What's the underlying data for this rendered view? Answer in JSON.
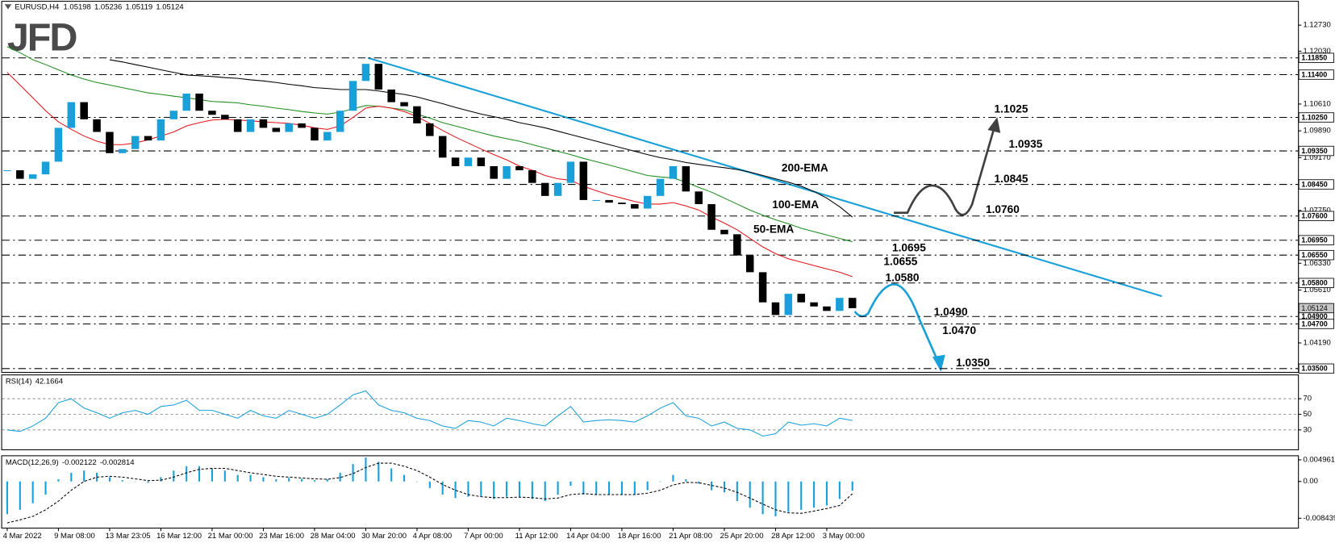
{
  "chart_data": [
    {
      "type": "candlestick",
      "logo": "JFD",
      "symbol": "EURUSD,H4",
      "ohlc": [
        1.05198,
        1.05236,
        1.05119,
        1.05124
      ],
      "categories": [
        "4 Mar 2022",
        null,
        null,
        null,
        "9 Mar 08:00",
        null,
        null,
        null,
        "13 Mar 23:05",
        null,
        null,
        null,
        "16 Mar 12:00",
        null,
        null,
        null,
        "21 Mar 00:00",
        null,
        null,
        null,
        "23 Mar 16:00",
        null,
        null,
        null,
        "28 Mar 04:00",
        null,
        null,
        null,
        "30 Mar 20:00",
        null,
        null,
        null,
        "4 Apr 08:00",
        null,
        null,
        null,
        "7 Apr 00:00",
        null,
        null,
        null,
        "11 Apr 12:00",
        null,
        null,
        null,
        "14 Apr 04:00",
        null,
        null,
        null,
        "18 Apr 16:00",
        null,
        null,
        null,
        "21 Apr 08:00",
        null,
        null,
        null,
        "25 Apr 20:00",
        null,
        null,
        null,
        "28 Apr 12:00",
        null,
        null,
        null,
        "3 May 00:00",
        null,
        null
      ],
      "values": [
        1.0883,
        1.086,
        1.0872,
        1.0906,
        1.0997,
        1.1066,
        1.102,
        1.0986,
        1.0929,
        1.094,
        1.0975,
        1.0963,
        1.102,
        1.1043,
        1.1089,
        1.1043,
        1.1032,
        1.102,
        1.0986,
        1.102,
        1.0997,
        1.0986,
        1.1009,
        1.0997,
        1.0963,
        1.0986,
        1.1043,
        1.1123,
        1.1169,
        1.11,
        1.1066,
        1.1055,
        1.1009,
        1.0975,
        1.0917,
        1.0894,
        1.0917,
        1.0894,
        1.086,
        1.0894,
        1.0883,
        1.0849,
        1.0814,
        1.0849,
        1.0906,
        1.0803,
        1.0803,
        1.0796,
        1.0792,
        1.078,
        1.0814,
        1.086,
        1.0894,
        1.0826,
        1.0792,
        1.0723,
        1.0711,
        1.0654,
        1.0609,
        1.0528,
        1.0494,
        1.0551,
        1.0528,
        1.0517,
        1.0505,
        1.054,
        1.05124
      ],
      "up_color": "#1aa0d8",
      "down_color": "#000000",
      "ema": [
        {
          "name": "200-EMA",
          "color": "#000000",
          "values": [
            null,
            null,
            null,
            null,
            null,
            null,
            null,
            null,
            1.118,
            1.1174,
            1.1167,
            1.116,
            1.1153,
            1.1146,
            1.1139,
            1.1137,
            1.1135,
            1.1132,
            1.113,
            1.1126,
            1.1123,
            1.1119,
            1.1114,
            1.111,
            1.1105,
            1.1103,
            1.11,
            1.11,
            1.11,
            1.1096,
            1.1091,
            1.1087,
            1.108,
            1.1071,
            1.1062,
            1.1052,
            1.1043,
            1.1034,
            1.1027,
            1.102,
            1.1011,
            1.1004,
            1.0997,
            1.0988,
            1.0979,
            1.097,
            1.0961,
            1.0952,
            1.0943,
            1.0934,
            1.0925,
            1.0917,
            1.0911,
            1.0904,
            1.0899,
            1.0894,
            1.089,
            1.0885,
            1.0878,
            1.0869,
            1.086,
            1.0851,
            1.084,
            1.0826,
            1.0808,
            1.0785,
            1.0757
          ]
        },
        {
          "name": "100-EMA",
          "color": "#1f8c1f",
          "values": [
            1.1215,
            1.1199,
            1.118,
            1.1167,
            1.1153,
            1.1139,
            1.1128,
            1.1119,
            1.1112,
            1.1105,
            1.1098,
            1.1091,
            1.1087,
            1.1082,
            1.1078,
            1.1073,
            1.1068,
            1.1066,
            1.1064,
            1.1059,
            1.1055,
            1.105,
            1.1046,
            1.1041,
            1.1037,
            1.1034,
            1.1039,
            1.1048,
            1.1057,
            1.1055,
            1.105,
            1.1046,
            1.1034,
            1.1023,
            1.1011,
            1.1002,
            1.0993,
            1.0984,
            1.0975,
            1.0968,
            1.0961,
            1.0952,
            1.0943,
            1.0934,
            1.0925,
            1.0915,
            1.0906,
            1.0897,
            1.0888,
            1.0878,
            1.0869,
            1.0865,
            1.0862,
            1.0851,
            1.0837,
            1.0824,
            1.0808,
            1.0792,
            1.0776,
            1.0762,
            1.075,
            1.0739,
            1.0727,
            1.0718,
            1.0709,
            1.07,
            1.0691
          ]
        },
        {
          "name": "50-EMA",
          "color": "#e3161b",
          "values": [
            1.1146,
            1.1112,
            1.1078,
            1.1043,
            1.1013,
            1.0993,
            1.0975,
            1.0961,
            1.0952,
            1.0952,
            1.0956,
            1.0965,
            1.0975,
            1.0986,
            1.1002,
            1.1011,
            1.1018,
            1.102,
            1.1018,
            1.1016,
            1.1013,
            1.1011,
            1.1009,
            1.1004,
            1.0997,
            1.0993,
            1.1002,
            1.1025,
            1.105,
            1.1055,
            1.105,
            1.1041,
            1.1027,
            1.1009,
            1.099,
            1.0972,
            1.0956,
            1.094,
            1.0925,
            1.0911,
            1.0894,
            1.0883,
            1.0869,
            1.086,
            1.0856,
            1.084,
            1.0828,
            1.0817,
            1.0808,
            1.0799,
            1.0792,
            1.0792,
            1.0796,
            1.0787,
            1.0776,
            1.0757,
            1.0741,
            1.0723,
            1.07,
            1.0677,
            1.0659,
            1.0645,
            1.0636,
            1.0627,
            1.0618,
            1.0609,
            1.0597
          ]
        }
      ],
      "ylim": [
        1.0341,
        1.1336
      ],
      "yticks": [
        {
          "value": 1.1273,
          "label": "1.12730"
        },
        {
          "value": 1.1203,
          "label": "1.12030"
        },
        {
          "value": 1.1061,
          "label": "1.10610"
        },
        {
          "value": 1.0989,
          "label": "1.09890"
        },
        {
          "value": 1.0917,
          "label": "1.09170"
        },
        {
          "value": 1.0775,
          "label": "1.07750"
        },
        {
          "value": 1.0633,
          "label": "1.06330"
        },
        {
          "value": 1.0561,
          "label": "1.05610"
        },
        {
          "value": 1.0419,
          "label": "1.04190"
        }
      ],
      "levels": [
        {
          "value": 1.1185,
          "label": "1.11850"
        },
        {
          "value": 1.114,
          "label": "1.11400"
        },
        {
          "value": 1.1025,
          "label": "1.10250"
        },
        {
          "value": 1.0935,
          "label": "1.09350"
        },
        {
          "value": 1.0845,
          "label": "1.08450"
        },
        {
          "value": 1.076,
          "label": "1.07600"
        },
        {
          "value": 1.0695,
          "label": "1.06950"
        },
        {
          "value": 1.0655,
          "label": "1.06550"
        },
        {
          "value": 1.058,
          "label": "1.05800"
        },
        {
          "value": 1.049,
          "label": "1.04900"
        },
        {
          "value": 1.047,
          "label": "1.04700"
        },
        {
          "value": 1.035,
          "label": "1.03500"
        }
      ],
      "annotations": {
        "bullish": {
          "color": "#000000",
          "texts": [
            "1.1025",
            "1.0935",
            "1.0845",
            "1.0760"
          ]
        },
        "bearish": {
          "color": "#1aa0d8",
          "texts": [
            "1.0695",
            "1.0655",
            "1.0580",
            "1.0490",
            "1.0470",
            "1.0350"
          ]
        }
      },
      "grid": false
    },
    {
      "type": "line",
      "title": "RSI(14)",
      "color": "#1aa0d8",
      "values": [
        30,
        28,
        35,
        45,
        65,
        70,
        58,
        52,
        45,
        52,
        55,
        50,
        60,
        62,
        68,
        55,
        55,
        50,
        45,
        55,
        48,
        45,
        55,
        50,
        45,
        50,
        62,
        75,
        80,
        62,
        55,
        52,
        45,
        42,
        35,
        32,
        42,
        40,
        35,
        45,
        42,
        38,
        35,
        48,
        60,
        40,
        42,
        43,
        42,
        40,
        48,
        58,
        65,
        48,
        45,
        35,
        40,
        32,
        30,
        22,
        25,
        40,
        36,
        38,
        35,
        45,
        42.1664
      ],
      "ylim": [
        5,
        100
      ],
      "yticks": [
        30,
        50,
        70
      ]
    },
    {
      "type": "bar",
      "title": "MACD(12,26,9)",
      "color": "#1aa0d8",
      "signal_color": "#000000",
      "values": [
        -0.0075,
        -0.0065,
        -0.005,
        -0.003,
        0.0005,
        0.002,
        0.0025,
        0.002,
        0.001,
        0.0003,
        0,
        -0.0003,
        0.001,
        0.0025,
        0.0035,
        0.0035,
        0.003,
        0.0025,
        0.0015,
        0.0015,
        0.001,
        0.0005,
        0.0008,
        0.0006,
        0.0003,
        0.0005,
        0.002,
        0.004,
        0.0055,
        0.0045,
        0.003,
        0.0015,
        0,
        -0.0015,
        -0.003,
        -0.0038,
        -0.0035,
        -0.0035,
        -0.004,
        -0.0035,
        -0.0035,
        -0.004,
        -0.0045,
        -0.003,
        -0.001,
        -0.003,
        -0.003,
        -0.003,
        -0.003,
        -0.003,
        -0.002,
        0,
        0.0015,
        0.0005,
        -0.0005,
        -0.002,
        -0.0025,
        -0.0045,
        -0.006,
        -0.0075,
        -0.008,
        -0.007,
        -0.0065,
        -0.006,
        -0.0055,
        -0.004,
        -0.002122
      ],
      "signal": [
        -0.0095,
        -0.0088,
        -0.008,
        -0.0065,
        -0.0045,
        -0.002,
        0,
        0.001,
        0.0012,
        0.001,
        0.0006,
        0.0002,
        0.0003,
        0.001,
        0.002,
        0.0028,
        0.003,
        0.003,
        0.0025,
        0.002,
        0.0016,
        0.0012,
        0.001,
        0.0008,
        0.0006,
        0.0005,
        0.0009,
        0.0018,
        0.0032,
        0.0042,
        0.0042,
        0.0035,
        0.0025,
        0.001,
        -0.0007,
        -0.002,
        -0.003,
        -0.0035,
        -0.0037,
        -0.0037,
        -0.0036,
        -0.0037,
        -0.004,
        -0.0038,
        -0.003,
        -0.0028,
        -0.003,
        -0.003,
        -0.003,
        -0.003,
        -0.0027,
        -0.002,
        -0.0008,
        -0.0002,
        -0.0003,
        -0.0009,
        -0.0015,
        -0.0025,
        -0.0038,
        -0.0052,
        -0.0065,
        -0.0072,
        -0.0073,
        -0.0068,
        -0.0062,
        -0.0055,
        -0.002814
      ],
      "ylim": [
        -0.0106,
        0.0058
      ],
      "yticks": [
        0.004961,
        {
          "value": 0,
          "label": "0.00"
        },
        -0.008439
      ]
    }
  ]
}
